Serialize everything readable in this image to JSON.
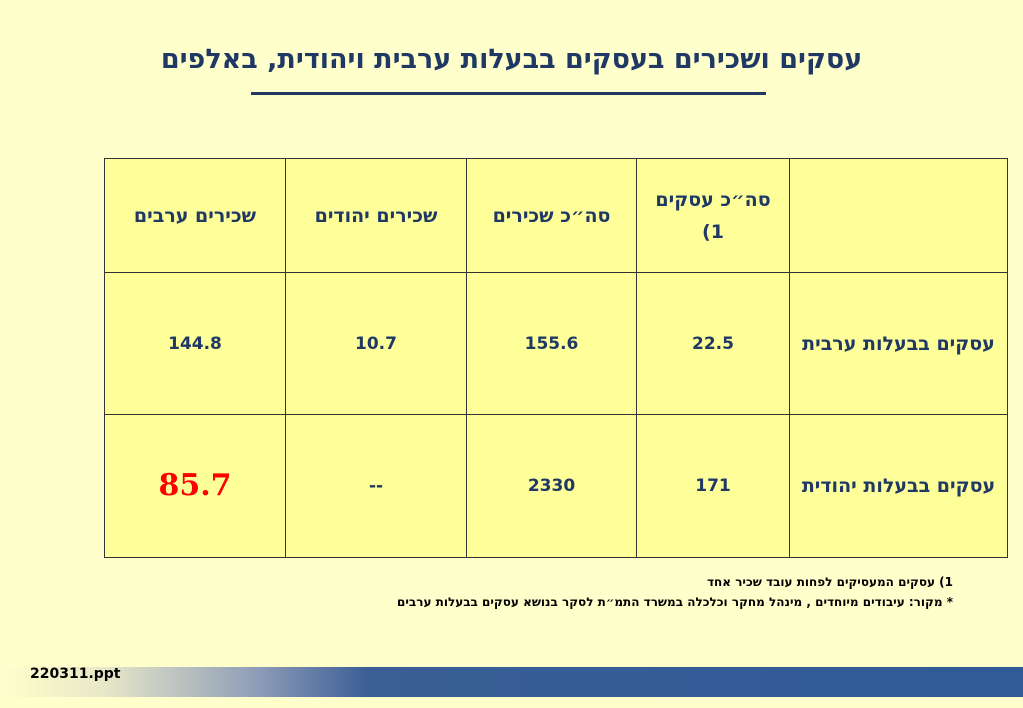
{
  "title": "עסקים ושכירים בעסקים בבעלות ערבית ויהודית, באלפים",
  "table": {
    "headers": [
      "",
      "סה״כ עסקים 1)",
      "סה״כ שכירים",
      "שכירים יהודים",
      "שכירים ערבים"
    ],
    "rows": [
      {
        "label": "עסקים בבעלות ערבית",
        "values": [
          "22.5",
          "155.6",
          "10.7",
          "144.8"
        ]
      },
      {
        "label": "עסקים בבעלות יהודית",
        "values": [
          "171",
          "2330",
          "--",
          "85.7"
        ]
      }
    ]
  },
  "notes": {
    "note1": "1) עסקים המעסיקים לפחות עובד שכיר אחד",
    "source": "* מקור: עיבודים מיוחדים , מינהל מחקר וכלכלה במשרד התמ״ת לסקר בנושא עסקים בבעלות ערבים"
  },
  "footer": {
    "filename": "220311.ppt"
  },
  "colors": {
    "title": "#1f3864",
    "highlight": "#ff0000",
    "cell_bg": "#ffff99",
    "page_bg": "#ffffcc"
  }
}
